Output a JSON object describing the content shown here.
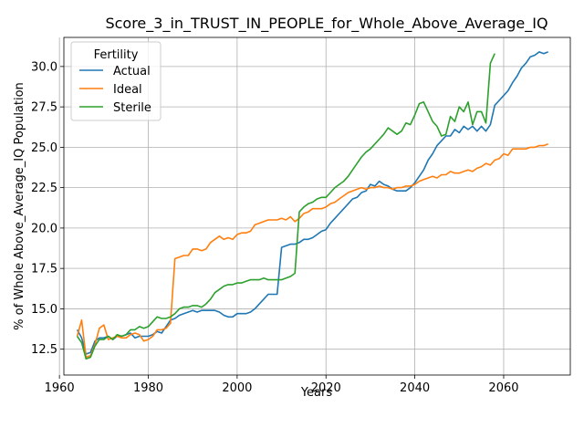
{
  "chart_data": {
    "type": "line",
    "title": "Score_3_in_TRUST_IN_PEOPLE_for_Whole_Above_Average_IQ",
    "xlabel": "Years",
    "ylabel": "% of Whole Above_Average_IQ Population",
    "xlim": [
      1961,
      2075
    ],
    "ylim": [
      10.9,
      31.8
    ],
    "xticks": [
      1960,
      1980,
      2000,
      2020,
      2040,
      2060
    ],
    "yticks": [
      12.5,
      15.0,
      17.5,
      20.0,
      22.5,
      25.0,
      27.5,
      30.0
    ],
    "xtick_labels": [
      "1960",
      "1980",
      "2000",
      "2020",
      "2040",
      "2060"
    ],
    "ytick_labels": [
      "12.5",
      "15.0",
      "17.5",
      "20.0",
      "22.5",
      "25.0",
      "27.5",
      "30.0"
    ],
    "grid": true,
    "legend": {
      "title": "Fertility",
      "placement": "top-left"
    },
    "series": [
      {
        "name": "Actual",
        "color": "#1f77b4",
        "points": [
          [
            1964,
            13.7
          ],
          [
            1965,
            13.2
          ],
          [
            1966,
            12.2
          ],
          [
            1967,
            12.3
          ],
          [
            1968,
            13.0
          ],
          [
            1969,
            13.2
          ],
          [
            1970,
            13.2
          ],
          [
            1971,
            13.3
          ],
          [
            1972,
            13.1
          ],
          [
            1973,
            13.3
          ],
          [
            1974,
            13.3
          ],
          [
            1975,
            13.4
          ],
          [
            1976,
            13.5
          ],
          [
            1977,
            13.2
          ],
          [
            1978,
            13.3
          ],
          [
            1979,
            13.3
          ],
          [
            1980,
            13.3
          ],
          [
            1981,
            13.4
          ],
          [
            1982,
            13.6
          ],
          [
            1983,
            13.5
          ],
          [
            1984,
            13.9
          ],
          [
            1985,
            14.3
          ],
          [
            1986,
            14.4
          ],
          [
            1987,
            14.6
          ],
          [
            1988,
            14.7
          ],
          [
            1989,
            14.8
          ],
          [
            1990,
            14.9
          ],
          [
            1991,
            14.8
          ],
          [
            1992,
            14.9
          ],
          [
            1993,
            14.9
          ],
          [
            1994,
            14.9
          ],
          [
            1995,
            14.9
          ],
          [
            1996,
            14.8
          ],
          [
            1997,
            14.6
          ],
          [
            1998,
            14.5
          ],
          [
            1999,
            14.5
          ],
          [
            2000,
            14.7
          ],
          [
            2001,
            14.7
          ],
          [
            2002,
            14.7
          ],
          [
            2003,
            14.8
          ],
          [
            2004,
            15.0
          ],
          [
            2005,
            15.3
          ],
          [
            2006,
            15.6
          ],
          [
            2007,
            15.9
          ],
          [
            2008,
            15.9
          ],
          [
            2009,
            15.9
          ],
          [
            2010,
            18.8
          ],
          [
            2011,
            18.9
          ],
          [
            2012,
            19.0
          ],
          [
            2013,
            19.0
          ],
          [
            2014,
            19.1
          ],
          [
            2015,
            19.3
          ],
          [
            2016,
            19.3
          ],
          [
            2017,
            19.4
          ],
          [
            2018,
            19.6
          ],
          [
            2019,
            19.8
          ],
          [
            2020,
            19.9
          ],
          [
            2021,
            20.3
          ],
          [
            2022,
            20.6
          ],
          [
            2023,
            20.9
          ],
          [
            2024,
            21.2
          ],
          [
            2025,
            21.5
          ],
          [
            2026,
            21.8
          ],
          [
            2027,
            21.9
          ],
          [
            2028,
            22.2
          ],
          [
            2029,
            22.3
          ],
          [
            2030,
            22.7
          ],
          [
            2031,
            22.6
          ],
          [
            2032,
            22.9
          ],
          [
            2033,
            22.7
          ],
          [
            2034,
            22.6
          ],
          [
            2035,
            22.4
          ],
          [
            2036,
            22.3
          ],
          [
            2037,
            22.3
          ],
          [
            2038,
            22.3
          ],
          [
            2039,
            22.5
          ],
          [
            2040,
            22.8
          ],
          [
            2041,
            23.2
          ],
          [
            2042,
            23.6
          ],
          [
            2043,
            24.2
          ],
          [
            2044,
            24.6
          ],
          [
            2045,
            25.1
          ],
          [
            2046,
            25.4
          ],
          [
            2047,
            25.7
          ],
          [
            2048,
            25.7
          ],
          [
            2049,
            26.1
          ],
          [
            2050,
            25.9
          ],
          [
            2051,
            26.3
          ],
          [
            2052,
            26.1
          ],
          [
            2053,
            26.3
          ],
          [
            2054,
            26.0
          ],
          [
            2055,
            26.3
          ],
          [
            2056,
            26.0
          ],
          [
            2057,
            26.4
          ],
          [
            2058,
            27.6
          ],
          [
            2059,
            27.9
          ],
          [
            2060,
            28.2
          ],
          [
            2061,
            28.5
          ],
          [
            2062,
            29.0
          ],
          [
            2063,
            29.4
          ],
          [
            2064,
            29.9
          ],
          [
            2065,
            30.2
          ],
          [
            2066,
            30.6
          ],
          [
            2067,
            30.7
          ],
          [
            2068,
            30.9
          ],
          [
            2069,
            30.8
          ],
          [
            2070,
            30.9
          ]
        ]
      },
      {
        "name": "Ideal",
        "color": "#ff7f0e",
        "points": [
          [
            1964,
            13.3
          ],
          [
            1965,
            14.3
          ],
          [
            1966,
            12.0
          ],
          [
            1967,
            12.1
          ],
          [
            1968,
            12.8
          ],
          [
            1969,
            13.8
          ],
          [
            1970,
            14.0
          ],
          [
            1971,
            13.1
          ],
          [
            1972,
            13.2
          ],
          [
            1973,
            13.3
          ],
          [
            1974,
            13.2
          ],
          [
            1975,
            13.2
          ],
          [
            1976,
            13.4
          ],
          [
            1977,
            13.5
          ],
          [
            1978,
            13.4
          ],
          [
            1979,
            13.0
          ],
          [
            1980,
            13.1
          ],
          [
            1981,
            13.3
          ],
          [
            1982,
            13.7
          ],
          [
            1983,
            13.7
          ],
          [
            1984,
            13.8
          ],
          [
            1985,
            14.1
          ],
          [
            1986,
            18.1
          ],
          [
            1987,
            18.2
          ],
          [
            1988,
            18.3
          ],
          [
            1989,
            18.3
          ],
          [
            1990,
            18.7
          ],
          [
            1991,
            18.7
          ],
          [
            1992,
            18.6
          ],
          [
            1993,
            18.7
          ],
          [
            1994,
            19.1
          ],
          [
            1995,
            19.3
          ],
          [
            1996,
            19.5
          ],
          [
            1997,
            19.3
          ],
          [
            1998,
            19.4
          ],
          [
            1999,
            19.3
          ],
          [
            2000,
            19.6
          ],
          [
            2001,
            19.7
          ],
          [
            2002,
            19.7
          ],
          [
            2003,
            19.8
          ],
          [
            2004,
            20.2
          ],
          [
            2005,
            20.3
          ],
          [
            2006,
            20.4
          ],
          [
            2007,
            20.5
          ],
          [
            2008,
            20.5
          ],
          [
            2009,
            20.5
          ],
          [
            2010,
            20.6
          ],
          [
            2011,
            20.5
          ],
          [
            2012,
            20.7
          ],
          [
            2013,
            20.4
          ],
          [
            2014,
            20.6
          ],
          [
            2015,
            20.9
          ],
          [
            2016,
            21.0
          ],
          [
            2017,
            21.2
          ],
          [
            2018,
            21.2
          ],
          [
            2019,
            21.2
          ],
          [
            2020,
            21.3
          ],
          [
            2021,
            21.5
          ],
          [
            2022,
            21.6
          ],
          [
            2023,
            21.8
          ],
          [
            2024,
            22.0
          ],
          [
            2025,
            22.2
          ],
          [
            2026,
            22.3
          ],
          [
            2027,
            22.4
          ],
          [
            2028,
            22.5
          ],
          [
            2029,
            22.4
          ],
          [
            2030,
            22.5
          ],
          [
            2031,
            22.5
          ],
          [
            2032,
            22.6
          ],
          [
            2033,
            22.5
          ],
          [
            2034,
            22.5
          ],
          [
            2035,
            22.4
          ],
          [
            2036,
            22.5
          ],
          [
            2037,
            22.5
          ],
          [
            2038,
            22.6
          ],
          [
            2039,
            22.6
          ],
          [
            2040,
            22.7
          ],
          [
            2041,
            22.9
          ],
          [
            2042,
            23.0
          ],
          [
            2043,
            23.1
          ],
          [
            2044,
            23.2
          ],
          [
            2045,
            23.1
          ],
          [
            2046,
            23.3
          ],
          [
            2047,
            23.3
          ],
          [
            2048,
            23.5
          ],
          [
            2049,
            23.4
          ],
          [
            2050,
            23.4
          ],
          [
            2051,
            23.5
          ],
          [
            2052,
            23.6
          ],
          [
            2053,
            23.5
          ],
          [
            2054,
            23.7
          ],
          [
            2055,
            23.8
          ],
          [
            2056,
            24.0
          ],
          [
            2057,
            23.9
          ],
          [
            2058,
            24.2
          ],
          [
            2059,
            24.3
          ],
          [
            2060,
            24.6
          ],
          [
            2061,
            24.5
          ],
          [
            2062,
            24.9
          ],
          [
            2063,
            24.9
          ],
          [
            2064,
            24.9
          ],
          [
            2065,
            24.9
          ],
          [
            2066,
            25.0
          ],
          [
            2067,
            25.0
          ],
          [
            2068,
            25.1
          ],
          [
            2069,
            25.1
          ],
          [
            2070,
            25.2
          ]
        ]
      },
      {
        "name": "Sterile",
        "color": "#2ca02c",
        "points": [
          [
            1964,
            13.3
          ],
          [
            1965,
            12.9
          ],
          [
            1966,
            11.9
          ],
          [
            1967,
            12.0
          ],
          [
            1968,
            12.7
          ],
          [
            1969,
            13.1
          ],
          [
            1970,
            13.1
          ],
          [
            1971,
            13.3
          ],
          [
            1972,
            13.1
          ],
          [
            1973,
            13.4
          ],
          [
            1974,
            13.3
          ],
          [
            1975,
            13.4
          ],
          [
            1976,
            13.7
          ],
          [
            1977,
            13.7
          ],
          [
            1978,
            13.9
          ],
          [
            1979,
            13.8
          ],
          [
            1980,
            13.9
          ],
          [
            1981,
            14.2
          ],
          [
            1982,
            14.5
          ],
          [
            1983,
            14.4
          ],
          [
            1984,
            14.4
          ],
          [
            1985,
            14.5
          ],
          [
            1986,
            14.7
          ],
          [
            1987,
            15.0
          ],
          [
            1988,
            15.1
          ],
          [
            1989,
            15.1
          ],
          [
            1990,
            15.2
          ],
          [
            1991,
            15.2
          ],
          [
            1992,
            15.1
          ],
          [
            1993,
            15.3
          ],
          [
            1994,
            15.6
          ],
          [
            1995,
            16.0
          ],
          [
            1996,
            16.2
          ],
          [
            1997,
            16.4
          ],
          [
            1998,
            16.5
          ],
          [
            1999,
            16.5
          ],
          [
            2000,
            16.6
          ],
          [
            2001,
            16.6
          ],
          [
            2002,
            16.7
          ],
          [
            2003,
            16.8
          ],
          [
            2004,
            16.8
          ],
          [
            2005,
            16.8
          ],
          [
            2006,
            16.9
          ],
          [
            2007,
            16.8
          ],
          [
            2008,
            16.8
          ],
          [
            2009,
            16.8
          ],
          [
            2010,
            16.8
          ],
          [
            2011,
            16.9
          ],
          [
            2012,
            17.0
          ],
          [
            2013,
            17.2
          ],
          [
            2014,
            21.0
          ],
          [
            2015,
            21.3
          ],
          [
            2016,
            21.5
          ],
          [
            2017,
            21.6
          ],
          [
            2018,
            21.8
          ],
          [
            2019,
            21.9
          ],
          [
            2020,
            21.9
          ],
          [
            2021,
            22.2
          ],
          [
            2022,
            22.5
          ],
          [
            2023,
            22.7
          ],
          [
            2024,
            22.9
          ],
          [
            2025,
            23.2
          ],
          [
            2026,
            23.6
          ],
          [
            2027,
            24.0
          ],
          [
            2028,
            24.4
          ],
          [
            2029,
            24.7
          ],
          [
            2030,
            24.9
          ],
          [
            2031,
            25.2
          ],
          [
            2032,
            25.5
          ],
          [
            2033,
            25.8
          ],
          [
            2034,
            26.2
          ],
          [
            2035,
            26.0
          ],
          [
            2036,
            25.8
          ],
          [
            2037,
            26.0
          ],
          [
            2038,
            26.5
          ],
          [
            2039,
            26.4
          ],
          [
            2040,
            27.0
          ],
          [
            2041,
            27.7
          ],
          [
            2042,
            27.8
          ],
          [
            2043,
            27.2
          ],
          [
            2044,
            26.6
          ],
          [
            2045,
            26.3
          ],
          [
            2046,
            25.7
          ],
          [
            2047,
            25.8
          ],
          [
            2048,
            26.9
          ],
          [
            2049,
            26.6
          ],
          [
            2050,
            27.5
          ],
          [
            2051,
            27.2
          ],
          [
            2052,
            27.8
          ],
          [
            2053,
            26.4
          ],
          [
            2054,
            27.2
          ],
          [
            2055,
            27.2
          ],
          [
            2056,
            26.5
          ],
          [
            2057,
            30.2
          ],
          [
            2058,
            30.8
          ]
        ]
      }
    ]
  }
}
